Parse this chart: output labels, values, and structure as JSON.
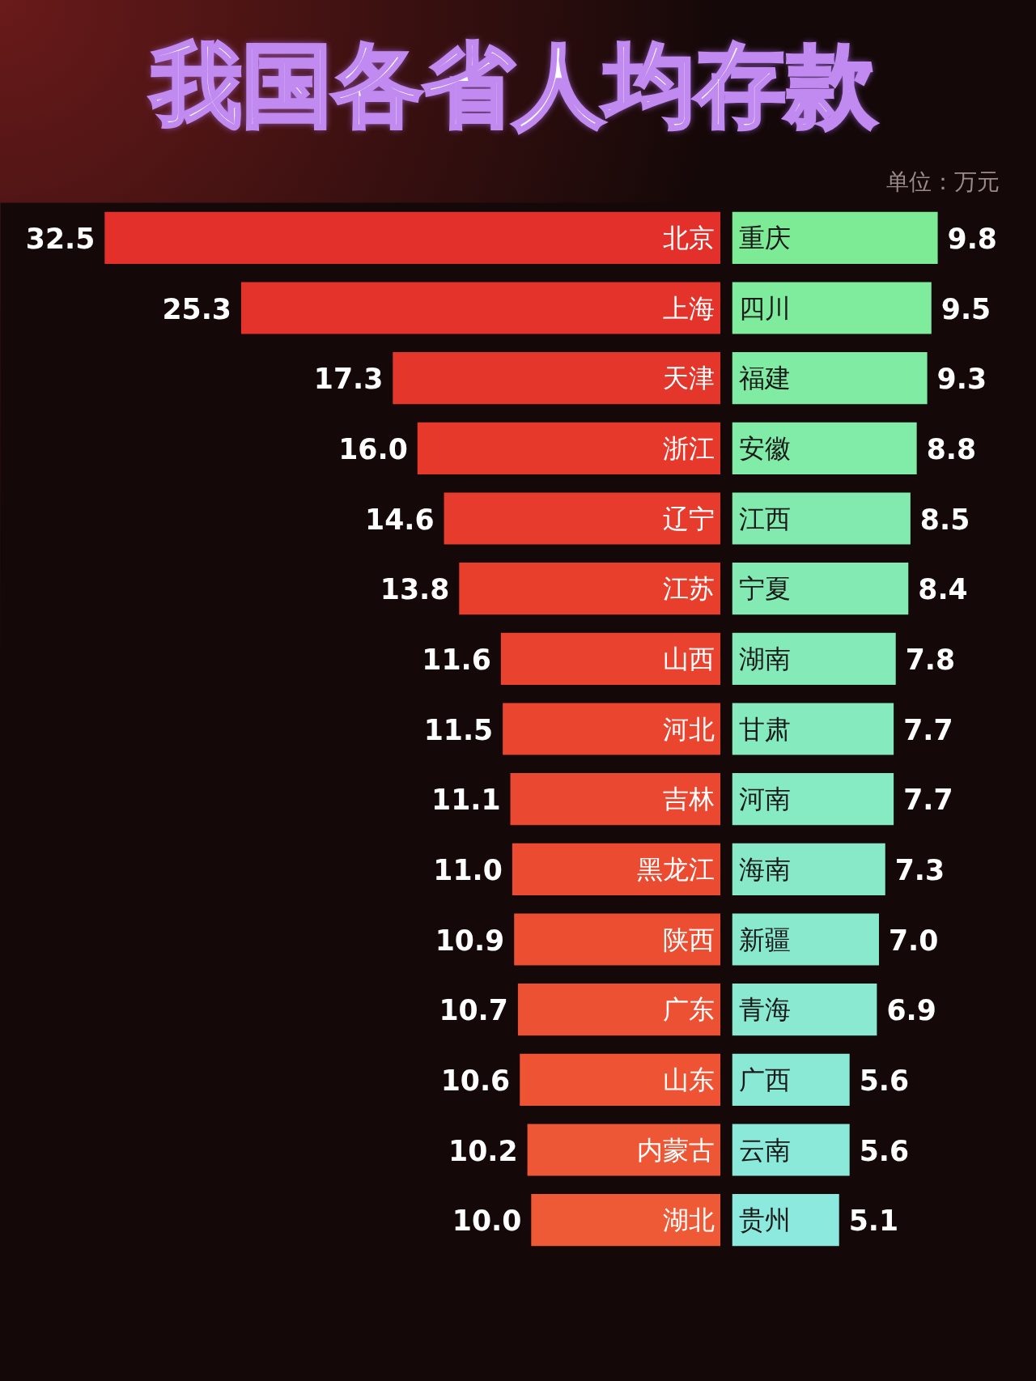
{
  "chart_data": [
    {
      "type": "bar",
      "orientation": "horizontal",
      "title": "我国各省人均存款",
      "annotations": [
        "单位：万元"
      ],
      "categories": [
        "北京",
        "上海",
        "天津",
        "浙江",
        "辽宁",
        "江苏",
        "山西",
        "河北",
        "吉林",
        "黑龙江",
        "陕西",
        "广东",
        "山东",
        "内蒙古",
        "湖北"
      ],
      "values": [
        32.5,
        25.3,
        17.3,
        16.0,
        14.6,
        13.8,
        11.6,
        11.5,
        11.1,
        11.0,
        10.9,
        10.7,
        10.6,
        10.2,
        10.0
      ],
      "colors": [
        "#e3302a",
        "#e4332a",
        "#e5362b",
        "#e6392c",
        "#e73c2d",
        "#e83f2d",
        "#e9422e",
        "#ea452f",
        "#ea4830",
        "#eb4b31",
        "#ec4e32",
        "#ed5133",
        "#ee5434",
        "#ee5735",
        "#ef5a36"
      ],
      "value_labels": [
        "32.5",
        "25.3",
        "17.3",
        "16.0",
        "14.6",
        "13.8",
        "11.6",
        "11.5",
        "11.1",
        "11.0",
        "10.9",
        "10.7",
        "10.6",
        "10.2",
        "10.0"
      ],
      "xlim": [
        38,
        0
      ],
      "tick_labels": false,
      "grid": false
    },
    {
      "type": "bar",
      "orientation": "horizontal",
      "categories": [
        "重庆",
        "四川",
        "福建",
        "安徽",
        "江西",
        "宁夏",
        "湖南",
        "甘肃",
        "河南",
        "海南",
        "新疆",
        "青海",
        "广西",
        "云南",
        "贵州"
      ],
      "values": [
        9.8,
        9.5,
        9.3,
        8.8,
        8.5,
        8.4,
        7.8,
        7.7,
        7.7,
        7.3,
        7.0,
        6.9,
        5.6,
        5.6,
        5.1
      ],
      "colors": [
        "#7deb96",
        "#7feb9c",
        "#80eba2",
        "#81eba8",
        "#82eaae",
        "#83eab3",
        "#84eab8",
        "#85eabd",
        "#86eac2",
        "#87e9c7",
        "#88e9cc",
        "#89e9d1",
        "#8ae9d5",
        "#8be9d9",
        "#8ce9dd"
      ],
      "value_labels": [
        "9.8",
        "9.5",
        "9.3",
        "8.8",
        "8.5",
        "8.4",
        "7.8",
        "7.7",
        "7.7",
        "7.3",
        "7.0",
        "6.9",
        "5.6",
        "5.6",
        "5.1"
      ],
      "xlim": [
        0,
        13.5
      ],
      "tick_labels": false,
      "grid": false
    }
  ]
}
